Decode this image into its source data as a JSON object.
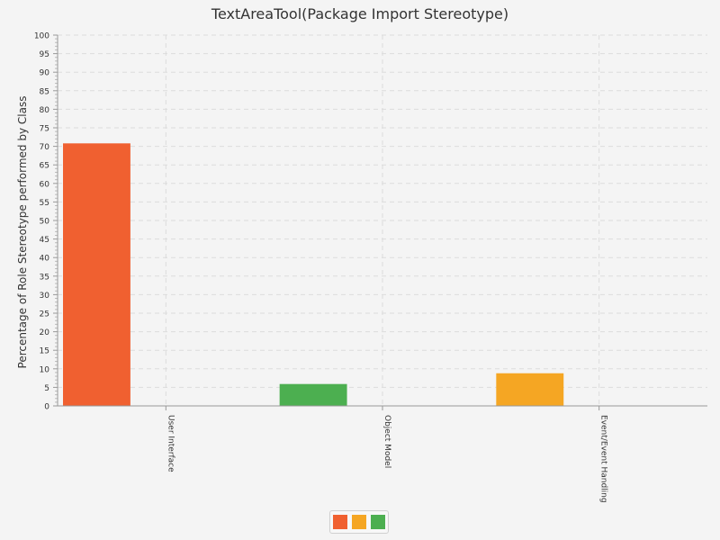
{
  "chart_data": {
    "type": "bar",
    "title": "TextAreaTool(Package Import Stereotype)",
    "xlabel": "",
    "ylabel": "Percentage of Role Stereotype performed by Class",
    "ylim": [
      0,
      100
    ],
    "yticks": [
      0,
      5,
      10,
      15,
      20,
      25,
      30,
      35,
      40,
      45,
      50,
      55,
      60,
      65,
      70,
      75,
      80,
      85,
      90,
      95,
      100
    ],
    "categories": [
      "User Interface",
      "Object Model",
      "Event/Event Handling"
    ],
    "series": [
      {
        "color": "#f06030",
        "values": [
          70.8,
          0,
          0
        ]
      },
      {
        "color": "#f5a623",
        "values": [
          0,
          0,
          8.8
        ]
      },
      {
        "color": "#4caf50",
        "values": [
          0,
          5.9,
          0
        ]
      }
    ],
    "bar_slots": [
      {
        "category": 0,
        "series": 0,
        "value": 70.8
      },
      {
        "category": 1,
        "series": 2,
        "value": 5.9
      },
      {
        "category": 2,
        "series": 1,
        "value": 8.8
      }
    ],
    "grid": true,
    "legend_position": "bottom"
  }
}
